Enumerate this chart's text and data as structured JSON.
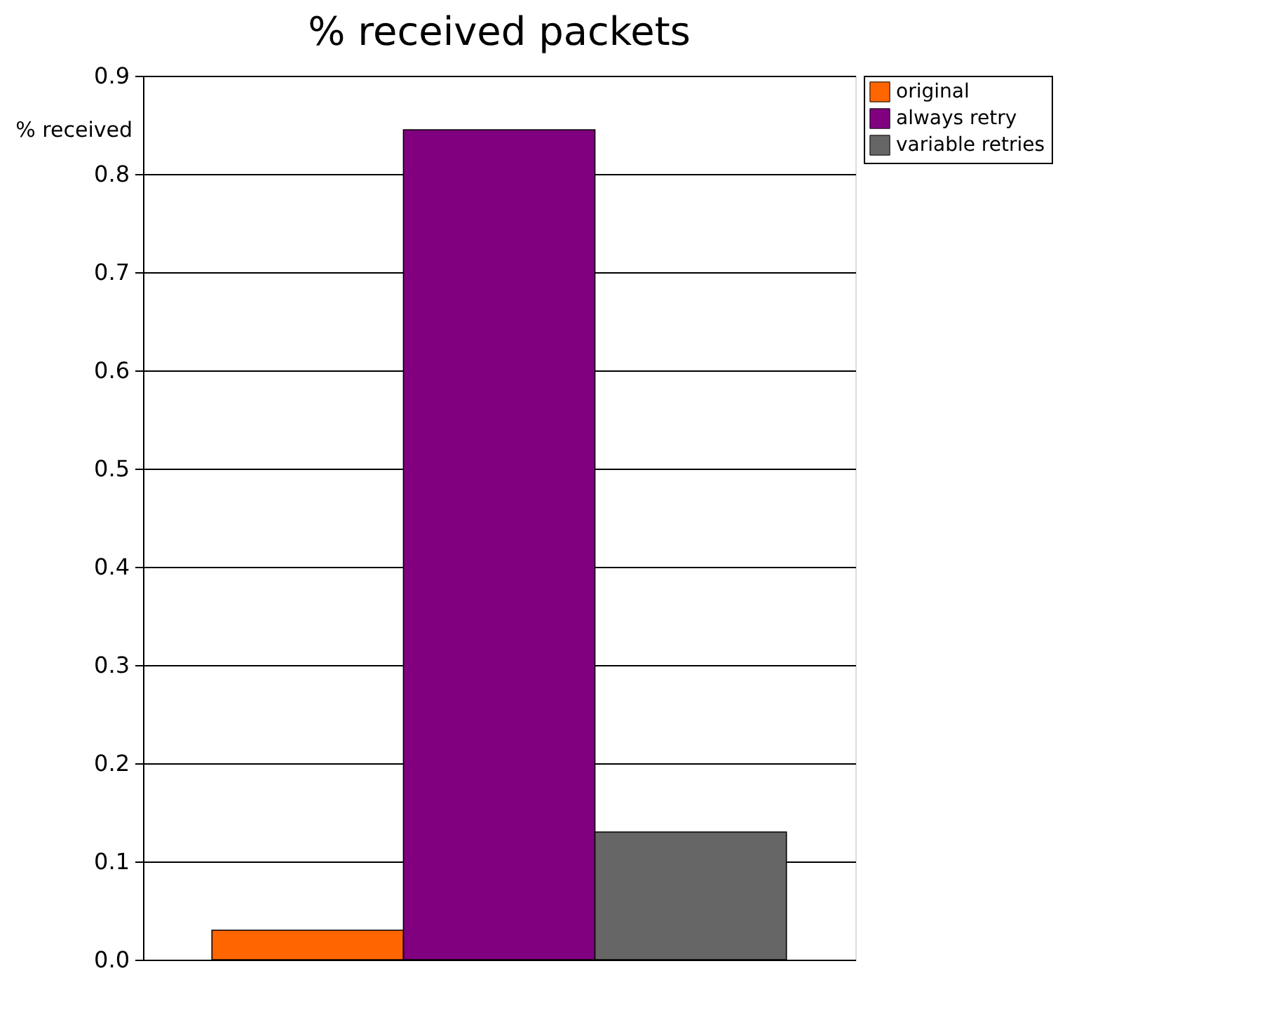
{
  "chart_data": {
    "type": "bar",
    "title": "% received packets",
    "ylabel": "% received",
    "categories": [
      null
    ],
    "series": [
      {
        "name": "original",
        "color": "#ff6600",
        "values": [
          0.03
        ]
      },
      {
        "name": "always retry",
        "color": "#800080",
        "values": [
          0.845
        ]
      },
      {
        "name": "variable retries",
        "color": "#666666",
        "values": [
          0.13
        ]
      }
    ],
    "ylim": [
      0,
      0.9
    ],
    "yticks": [
      {
        "value": 0,
        "label": "0.0"
      },
      {
        "value": 0.1,
        "label": "0.1"
      },
      {
        "value": 0.2,
        "label": "0.2"
      },
      {
        "value": 0.3,
        "label": "0.3"
      },
      {
        "value": 0.4,
        "label": "0.4"
      },
      {
        "value": 0.5,
        "label": "0.5"
      },
      {
        "value": 0.6,
        "label": "0.6"
      },
      {
        "value": 0.7,
        "label": "0.7"
      },
      {
        "value": 0.8,
        "label": "0.8"
      },
      {
        "value": 0.9,
        "label": "0.9"
      }
    ],
    "grid": "y",
    "legend": "right"
  }
}
